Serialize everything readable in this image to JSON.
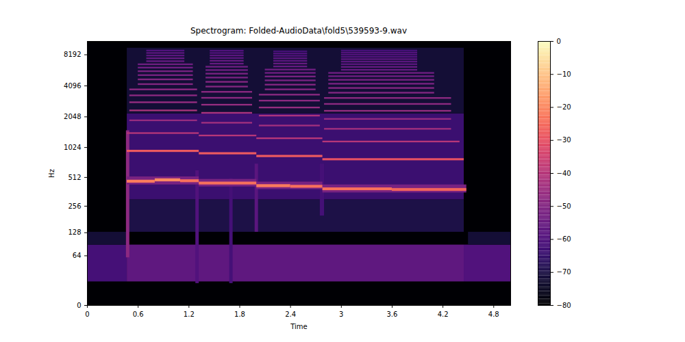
{
  "chart_data": {
    "type": "heatmap",
    "title": "Spectrogram: Folded-AudioData\\fold5\\539593-9.wav",
    "x_label": "Time",
    "y_label": "Hz",
    "xlim": [
      0,
      5
    ],
    "xticks": [
      0,
      0.6,
      1.2,
      1.8,
      2.4,
      3,
      3.6,
      4.2,
      4.8
    ],
    "ylim": [
      0,
      11025
    ],
    "yticks": [
      0,
      64,
      128,
      256,
      512,
      1024,
      2048,
      4096,
      8192
    ],
    "log": "y",
    "color": "magma",
    "colorbar": {
      "range": [
        -80,
        0
      ],
      "ticks": [
        0,
        {
          "value": -10,
          "label": "−10"
        },
        {
          "value": -20,
          "label": "−20"
        },
        {
          "value": -30,
          "label": "−30"
        },
        {
          "value": -40,
          "label": "−40"
        },
        {
          "value": -50,
          "label": "−50"
        },
        {
          "value": -60,
          "label": "−60"
        },
        {
          "value": -70,
          "label": "−70"
        },
        {
          "value": -80,
          "label": "−80"
        }
      ]
    },
    "cells": [
      [
        0,
        5,
        0,
        11025,
        -80
      ],
      [
        0,
        0.47,
        22,
        90,
        -62
      ],
      [
        0.47,
        4.45,
        22,
        90,
        -57
      ],
      [
        4.45,
        5,
        22,
        90,
        -60
      ],
      [
        0,
        0.47,
        90,
        130,
        -72
      ],
      [
        4.5,
        5,
        90,
        130,
        -72
      ],
      [
        0.47,
        4.45,
        130,
        300,
        -70
      ],
      [
        0.47,
        4.45,
        300,
        2200,
        -64
      ],
      [
        0.47,
        4.45,
        2200,
        9500,
        -72
      ],
      [
        0.46,
        0.5,
        60,
        1500,
        -48
      ],
      [
        1.28,
        1.32,
        20,
        600,
        -60
      ],
      [
        1.68,
        1.72,
        20,
        500,
        -62
      ],
      [
        1.98,
        2.02,
        130,
        700,
        -58
      ],
      [
        2.75,
        2.8,
        200,
        700,
        -62
      ],
      [
        0.47,
        1.32,
        430,
        520,
        -52
      ],
      [
        1.32,
        2.0,
        410,
        490,
        -52
      ],
      [
        2.0,
        2.78,
        385,
        460,
        -52
      ],
      [
        2.78,
        4.48,
        355,
        430,
        -52
      ],
      [
        0.47,
        0.8,
        449,
        481,
        -22
      ],
      [
        0.8,
        1.1,
        463,
        497,
        -20
      ],
      [
        1.1,
        1.32,
        454,
        486,
        -24
      ],
      [
        0.47,
        1.32,
        917,
        963,
        -28
      ],
      [
        0.47,
        1.32,
        1385,
        1435,
        -40
      ],
      [
        0.5,
        1.3,
        1846,
        1914,
        -46
      ],
      [
        0.5,
        1.3,
        2308,
        2392,
        -42
      ],
      [
        0.5,
        1.3,
        2769,
        2871,
        -46
      ],
      [
        0.5,
        1.3,
        3231,
        3349,
        -48
      ],
      [
        0.5,
        1.3,
        3692,
        3828,
        -48
      ],
      [
        0.6,
        1.25,
        4154,
        4306,
        -50
      ],
      [
        0.6,
        1.25,
        4615,
        4785,
        -50
      ],
      [
        0.6,
        1.25,
        5077,
        5263,
        -52
      ],
      [
        0.6,
        1.25,
        5538,
        5742,
        -52
      ],
      [
        0.6,
        1.25,
        6000,
        6220,
        -54
      ],
      [
        0.6,
        1.25,
        6462,
        6698,
        -54
      ],
      [
        0.7,
        1.15,
        6923,
        7177,
        -56
      ],
      [
        0.7,
        1.15,
        7385,
        7655,
        -56
      ],
      [
        0.7,
        1.15,
        7846,
        8134,
        -58
      ],
      [
        0.7,
        1.15,
        8308,
        8612,
        -58
      ],
      [
        0.7,
        1.15,
        8769,
        9091,
        -60
      ],
      [
        1.32,
        2.0,
        430,
        460,
        -24
      ],
      [
        1.32,
        2.0,
        868,
        912,
        -28
      ],
      [
        1.32,
        2.0,
        1311,
        1359,
        -40
      ],
      [
        1.35,
        1.95,
        1748,
        1812,
        -44
      ],
      [
        1.35,
        1.95,
        2185,
        2265,
        -42
      ],
      [
        1.35,
        1.95,
        2622,
        2718,
        -46
      ],
      [
        1.35,
        1.95,
        3059,
        3171,
        -48
      ],
      [
        1.35,
        1.95,
        3496,
        3624,
        -48
      ],
      [
        1.4,
        1.9,
        3933,
        4077,
        -50
      ],
      [
        1.4,
        1.9,
        4370,
        4530,
        -50
      ],
      [
        1.4,
        1.9,
        4807,
        4983,
        -52
      ],
      [
        1.4,
        1.9,
        5244,
        5436,
        -52
      ],
      [
        1.4,
        1.9,
        5681,
        5889,
        -54
      ],
      [
        1.4,
        1.9,
        6118,
        6342,
        -54
      ],
      [
        1.45,
        1.85,
        6555,
        6795,
        -56
      ],
      [
        1.45,
        1.85,
        6992,
        7248,
        -56
      ],
      [
        1.45,
        1.85,
        7429,
        7701,
        -58
      ],
      [
        1.45,
        1.85,
        7866,
        8154,
        -58
      ],
      [
        1.45,
        1.85,
        8303,
        8607,
        -60
      ],
      [
        1.45,
        1.85,
        8740,
        9060,
        -60
      ],
      [
        2.0,
        2.4,
        403,
        433,
        -22
      ],
      [
        2.4,
        2.78,
        398,
        426,
        -24
      ],
      [
        2.0,
        2.78,
        815,
        857,
        -28
      ],
      [
        2.0,
        2.78,
        1231,
        1277,
        -40
      ],
      [
        2.03,
        2.75,
        1642,
        1702,
        -44
      ],
      [
        2.03,
        2.75,
        2052,
        2128,
        -42
      ],
      [
        2.03,
        2.75,
        2463,
        2553,
        -46
      ],
      [
        2.03,
        2.75,
        2873,
        2979,
        -48
      ],
      [
        2.03,
        2.75,
        3284,
        3404,
        -48
      ],
      [
        2.1,
        2.7,
        3694,
        3830,
        -50
      ],
      [
        2.1,
        2.7,
        4105,
        4255,
        -50
      ],
      [
        2.1,
        2.7,
        4515,
        4681,
        -52
      ],
      [
        2.1,
        2.7,
        4926,
        5106,
        -52
      ],
      [
        2.1,
        2.7,
        5336,
        5532,
        -54
      ],
      [
        2.1,
        2.7,
        5747,
        5957,
        -54
      ],
      [
        2.2,
        2.6,
        6157,
        6383,
        -56
      ],
      [
        2.2,
        2.6,
        6568,
        6808,
        -56
      ],
      [
        2.2,
        2.6,
        6978,
        7234,
        -58
      ],
      [
        2.2,
        2.6,
        7389,
        7659,
        -58
      ],
      [
        2.2,
        2.6,
        7799,
        8085,
        -60
      ],
      [
        2.2,
        2.6,
        8209,
        8510,
        -60
      ],
      [
        2.2,
        2.6,
        8620,
        8936,
        -62
      ],
      [
        2.78,
        3.6,
        375,
        401,
        -24
      ],
      [
        3.6,
        4.48,
        369,
        395,
        -26
      ],
      [
        2.78,
        4.45,
        757,
        795,
        -30
      ],
      [
        2.78,
        4.4,
        1143,
        1185,
        -40
      ],
      [
        2.8,
        4.3,
        1524,
        1580,
        -44
      ],
      [
        2.8,
        4.3,
        1905,
        1975,
        -46
      ],
      [
        2.8,
        4.3,
        2286,
        2370,
        -46
      ],
      [
        2.8,
        4.3,
        2667,
        2765,
        -48
      ],
      [
        2.8,
        4.3,
        3048,
        3160,
        -48
      ],
      [
        2.85,
        4.1,
        3429,
        3555,
        -50
      ],
      [
        2.85,
        4.1,
        3810,
        3950,
        -50
      ],
      [
        2.85,
        4.1,
        4191,
        4345,
        -52
      ],
      [
        2.85,
        4.1,
        4572,
        4740,
        -52
      ],
      [
        2.85,
        4.1,
        4953,
        5135,
        -54
      ],
      [
        2.85,
        4.1,
        5334,
        5530,
        -54
      ],
      [
        3.0,
        3.9,
        5715,
        5925,
        -56
      ],
      [
        3.0,
        3.9,
        6096,
        6320,
        -56
      ],
      [
        3.0,
        3.9,
        6477,
        6715,
        -58
      ],
      [
        3.0,
        3.9,
        6858,
        7110,
        -58
      ],
      [
        3.0,
        3.9,
        7239,
        7505,
        -58
      ],
      [
        3.0,
        3.9,
        7620,
        7900,
        -60
      ],
      [
        3.0,
        3.9,
        8001,
        8295,
        -60
      ],
      [
        3.0,
        3.9,
        8382,
        8690,
        -60
      ],
      [
        3.0,
        3.9,
        8763,
        9085,
        -62
      ]
    ]
  }
}
